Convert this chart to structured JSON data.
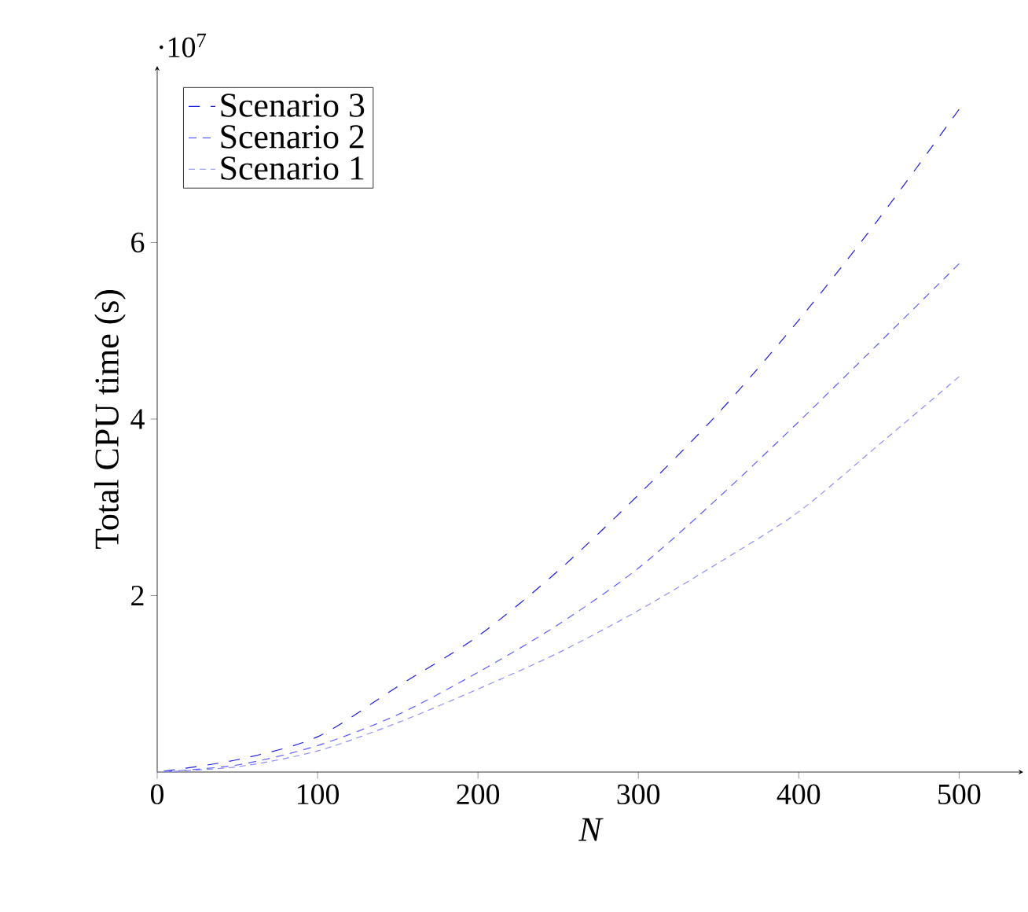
{
  "chart_data": {
    "type": "line",
    "xlabel": "N",
    "ylabel": "Total CPU time (s)",
    "annotations": [
      "·10$^{7}$"
    ],
    "x": [
      0,
      50,
      100,
      150,
      200,
      250,
      300,
      350,
      400,
      450,
      500
    ],
    "series": [
      {
        "name": "Scenario 3",
        "color": "#1a1ae6",
        "values": [
          0,
          0.14,
          0.4,
          0.97,
          1.54,
          2.28,
          3.14,
          4.07,
          5.12,
          6.27,
          7.51
        ]
      },
      {
        "name": "Scenario 2",
        "color": "#5c5cff",
        "values": [
          0,
          0.08,
          0.3,
          0.65,
          1.13,
          1.67,
          2.31,
          3.11,
          3.97,
          4.86,
          5.76
        ]
      },
      {
        "name": "Scenario 1",
        "color": "#8c8cff",
        "values": [
          0,
          0.06,
          0.24,
          0.56,
          0.94,
          1.35,
          1.83,
          2.37,
          2.95,
          3.71,
          4.48
        ]
      }
    ],
    "xlim": [
      0,
      540
    ],
    "ylim": [
      0,
      8
    ],
    "xticks": [
      0,
      100,
      200,
      300,
      400,
      500
    ],
    "yticks": [
      2,
      4,
      6
    ],
    "legend": "top left",
    "line_style": "dashed",
    "grid": false
  }
}
